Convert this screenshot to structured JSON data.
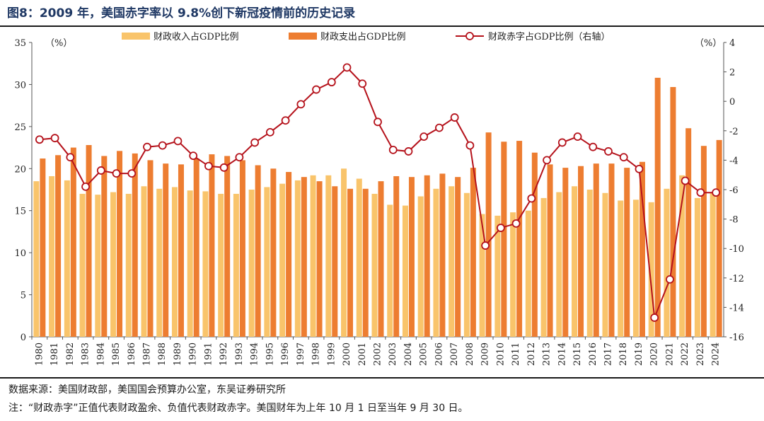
{
  "title": "图8：2009 年，美国赤字率以 9.8%创下新冠疫情前的历史记录",
  "source": "数据来源：美国财政部，美国国会预算办公室，东吴证券研究所",
  "note": "注：“财政赤字”正值代表财政盈余、负值代表财政赤字。美国财年为上年 10 月 1 日至当年 9 月 30 日。",
  "chart_data": {
    "type": "bar",
    "categories": [
      "1980",
      "1981",
      "1982",
      "1983",
      "1984",
      "1985",
      "1986",
      "1987",
      "1988",
      "1989",
      "1990",
      "1991",
      "1992",
      "1993",
      "1994",
      "1995",
      "1996",
      "1997",
      "1998",
      "1999",
      "2000",
      "2001",
      "2002",
      "2003",
      "2004",
      "2005",
      "2006",
      "2007",
      "2008",
      "2009",
      "2010",
      "2011",
      "2012",
      "2013",
      "2014",
      "2015",
      "2016",
      "2017",
      "2018",
      "2019",
      "2020",
      "2021",
      "2022",
      "2023",
      "2024"
    ],
    "left_axis": {
      "unit_label": "（%）",
      "ylim": [
        0,
        35
      ],
      "ticks": [
        "0",
        "5",
        "10",
        "15",
        "20",
        "25",
        "30",
        "35"
      ]
    },
    "right_axis": {
      "unit_label": "（%）",
      "ylim": [
        -16,
        4
      ],
      "ticks": [
        "-16",
        "-14",
        "-12",
        "-10",
        "-8",
        "-6",
        "-4",
        "-2",
        "0",
        "2",
        "4"
      ]
    },
    "legend": "top",
    "grid": false,
    "series": [
      {
        "name": "财政收入占GDP比例",
        "kind": "bar",
        "axis": "left",
        "color": "#f9c46b",
        "values": [
          18.5,
          19.1,
          18.6,
          17.0,
          16.9,
          17.2,
          17.0,
          17.9,
          17.6,
          17.8,
          17.4,
          17.3,
          17.0,
          17.0,
          17.5,
          17.8,
          18.2,
          18.6,
          19.2,
          19.2,
          20.0,
          18.8,
          17.0,
          15.7,
          15.6,
          16.7,
          17.6,
          17.9,
          17.1,
          14.6,
          14.4,
          14.8,
          15.0,
          16.5,
          17.2,
          17.9,
          17.5,
          17.1,
          16.2,
          16.3,
          16.0,
          17.6,
          19.2,
          16.5,
          17.1
        ]
      },
      {
        "name": "财政支出占GDP比例",
        "kind": "bar",
        "axis": "left",
        "color": "#ed7d31",
        "values": [
          21.2,
          21.6,
          22.5,
          22.8,
          21.5,
          22.1,
          21.8,
          21.0,
          20.6,
          20.5,
          21.2,
          21.7,
          21.5,
          21.0,
          20.4,
          20.0,
          19.6,
          19.0,
          18.5,
          17.9,
          17.6,
          17.6,
          18.5,
          19.1,
          19.0,
          19.2,
          19.4,
          19.0,
          20.1,
          24.3,
          23.2,
          23.3,
          21.9,
          20.5,
          20.1,
          20.3,
          20.6,
          20.6,
          20.1,
          20.8,
          30.8,
          29.7,
          24.8,
          22.7,
          23.4
        ]
      },
      {
        "name": "财政赤字占GDP比例（右轴）",
        "kind": "line",
        "axis": "right",
        "color": "#b5121b",
        "values": [
          -2.6,
          -2.5,
          -3.8,
          -5.8,
          -4.7,
          -4.9,
          -4.9,
          -3.1,
          -3.0,
          -2.7,
          -3.7,
          -4.4,
          -4.5,
          -3.8,
          -2.8,
          -2.1,
          -1.3,
          -0.2,
          0.8,
          1.3,
          2.3,
          1.2,
          -1.4,
          -3.3,
          -3.4,
          -2.4,
          -1.8,
          -1.1,
          -3.0,
          -9.8,
          -8.6,
          -8.3,
          -6.6,
          -4.0,
          -2.8,
          -2.4,
          -3.1,
          -3.4,
          -3.8,
          -4.6,
          -14.7,
          -12.1,
          -5.4,
          -6.2,
          -6.2
        ]
      }
    ]
  }
}
